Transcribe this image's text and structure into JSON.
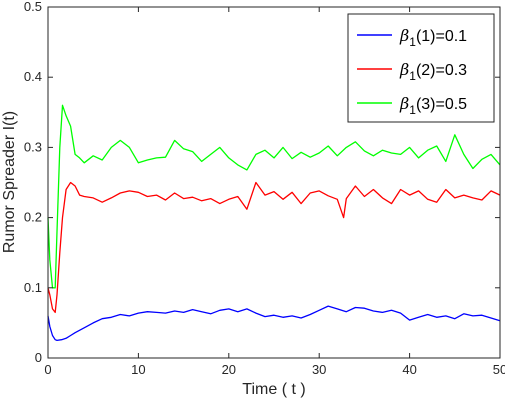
{
  "chart_data": {
    "type": "line",
    "xlabel": "Time ( t )",
    "ylabel": "Rumor Spreader I(t)",
    "xlim": [
      0,
      50
    ],
    "ylim": [
      0,
      0.5
    ],
    "x_ticks": [
      "0",
      "10",
      "20",
      "30",
      "40",
      "50"
    ],
    "y_ticks": [
      "0",
      "0.1",
      "0.2",
      "0.3",
      "0.4",
      "0.5"
    ],
    "grid": false,
    "legend_position": "top-right",
    "legend": [
      {
        "beta": "β",
        "sub": "1",
        "suffix": "(1)=0.1"
      },
      {
        "beta": "β",
        "sub": "1",
        "suffix": "(2)=0.3"
      },
      {
        "beta": "β",
        "sub": "1",
        "suffix": "(3)=0.5"
      }
    ],
    "series": [
      {
        "color": "#0000ff",
        "x": [
          0,
          0.2,
          0.5,
          0.8,
          1.0,
          1.5,
          2.0,
          2.5,
          3.0,
          4.0,
          5.0,
          6.0,
          7.0,
          8.0,
          9.0,
          10.0,
          11.0,
          12.0,
          13.0,
          14.0,
          15.0,
          16.0,
          17.0,
          18.0,
          19.0,
          20.0,
          21.0,
          22.0,
          23.0,
          24.0,
          25.0,
          26.0,
          27.0,
          28.0,
          29.0,
          30.0,
          31.0,
          32.0,
          33.0,
          34.0,
          35.0,
          36.0,
          37.0,
          38.0,
          39.0,
          40.0,
          41.0,
          42.0,
          43.0,
          44.0,
          45.0,
          46.0,
          47.0,
          48.0,
          49.0,
          50.0
        ],
        "y": [
          0.06,
          0.045,
          0.032,
          0.026,
          0.025,
          0.026,
          0.028,
          0.032,
          0.036,
          0.043,
          0.05,
          0.056,
          0.058,
          0.062,
          0.06,
          0.064,
          0.066,
          0.065,
          0.064,
          0.067,
          0.065,
          0.069,
          0.066,
          0.063,
          0.068,
          0.07,
          0.066,
          0.07,
          0.064,
          0.059,
          0.061,
          0.058,
          0.06,
          0.057,
          0.062,
          0.068,
          0.074,
          0.07,
          0.066,
          0.072,
          0.071,
          0.067,
          0.065,
          0.068,
          0.064,
          0.054,
          0.058,
          0.062,
          0.058,
          0.06,
          0.056,
          0.063,
          0.06,
          0.061,
          0.057,
          0.053
        ]
      },
      {
        "color": "#ff0000",
        "x": [
          0,
          0.2,
          0.5,
          0.8,
          1.0,
          1.3,
          1.6,
          2.0,
          2.5,
          3.0,
          3.5,
          4.0,
          5.0,
          6.0,
          7.0,
          8.0,
          9.0,
          10.0,
          11.0,
          12.0,
          13.0,
          14.0,
          15.0,
          16.0,
          17.0,
          18.0,
          19.0,
          20.0,
          21.0,
          22.0,
          23.0,
          24.0,
          25.0,
          26.0,
          27.0,
          28.0,
          29.0,
          30.0,
          31.0,
          32.0,
          32.7,
          33.0,
          34.0,
          35.0,
          36.0,
          37.0,
          38.0,
          39.0,
          40.0,
          41.0,
          42.0,
          43.0,
          44.0,
          45.0,
          46.0,
          47.0,
          48.0,
          49.0,
          50.0
        ],
        "y": [
          0.1,
          0.09,
          0.07,
          0.065,
          0.09,
          0.15,
          0.2,
          0.24,
          0.25,
          0.245,
          0.232,
          0.23,
          0.228,
          0.222,
          0.228,
          0.235,
          0.238,
          0.236,
          0.23,
          0.232,
          0.225,
          0.235,
          0.227,
          0.229,
          0.224,
          0.227,
          0.22,
          0.226,
          0.23,
          0.212,
          0.25,
          0.232,
          0.237,
          0.226,
          0.236,
          0.22,
          0.235,
          0.238,
          0.231,
          0.226,
          0.2,
          0.227,
          0.245,
          0.23,
          0.24,
          0.228,
          0.22,
          0.24,
          0.232,
          0.238,
          0.226,
          0.222,
          0.24,
          0.228,
          0.232,
          0.228,
          0.225,
          0.238,
          0.232
        ]
      },
      {
        "color": "#00ff00",
        "x": [
          0,
          0.2,
          0.5,
          0.8,
          1.0,
          1.3,
          1.6,
          2.0,
          2.5,
          3.0,
          3.5,
          4.0,
          5.0,
          6.0,
          7.0,
          8.0,
          9.0,
          10.0,
          11.0,
          12.0,
          13.0,
          14.0,
          15.0,
          16.0,
          17.0,
          18.0,
          19.0,
          20.0,
          21.0,
          22.0,
          23.0,
          24.0,
          25.0,
          26.0,
          27.0,
          28.0,
          29.0,
          30.0,
          31.0,
          32.0,
          33.0,
          34.0,
          35.0,
          36.0,
          37.0,
          38.0,
          39.0,
          40.0,
          41.0,
          42.0,
          43.0,
          44.0,
          45.0,
          46.0,
          47.0,
          48.0,
          49.0,
          50.0
        ],
        "y": [
          0.2,
          0.14,
          0.1,
          0.1,
          0.18,
          0.3,
          0.36,
          0.345,
          0.33,
          0.29,
          0.285,
          0.278,
          0.288,
          0.282,
          0.3,
          0.31,
          0.3,
          0.278,
          0.282,
          0.285,
          0.286,
          0.31,
          0.298,
          0.294,
          0.28,
          0.29,
          0.3,
          0.285,
          0.275,
          0.268,
          0.29,
          0.296,
          0.285,
          0.3,
          0.284,
          0.293,
          0.286,
          0.292,
          0.302,
          0.288,
          0.3,
          0.308,
          0.295,
          0.288,
          0.296,
          0.292,
          0.29,
          0.3,
          0.285,
          0.296,
          0.302,
          0.28,
          0.318,
          0.29,
          0.27,
          0.283,
          0.29,
          0.275
        ]
      }
    ]
  }
}
